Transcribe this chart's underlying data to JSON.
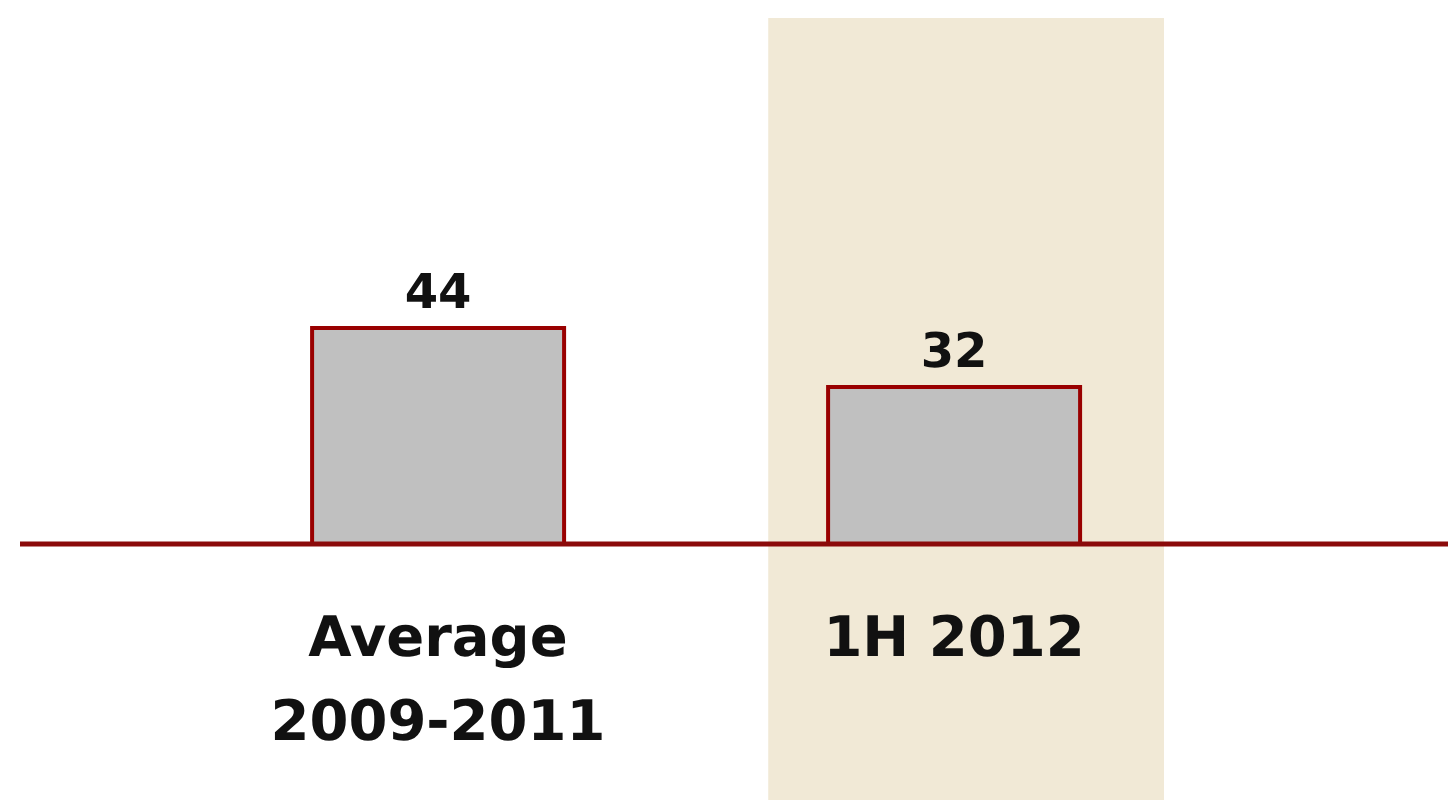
{
  "chart_data": {
    "type": "bar",
    "categories": [
      "Average 2009-2011",
      "1H 2012"
    ],
    "values": [
      44,
      32
    ],
    "color": "#c0c0c0",
    "data_labels": true,
    "bands": [
      {
        "axis": "x",
        "from": "1H 2012",
        "to": "1H 2012",
        "color": "#f1e9d6"
      }
    ]
  }
}
